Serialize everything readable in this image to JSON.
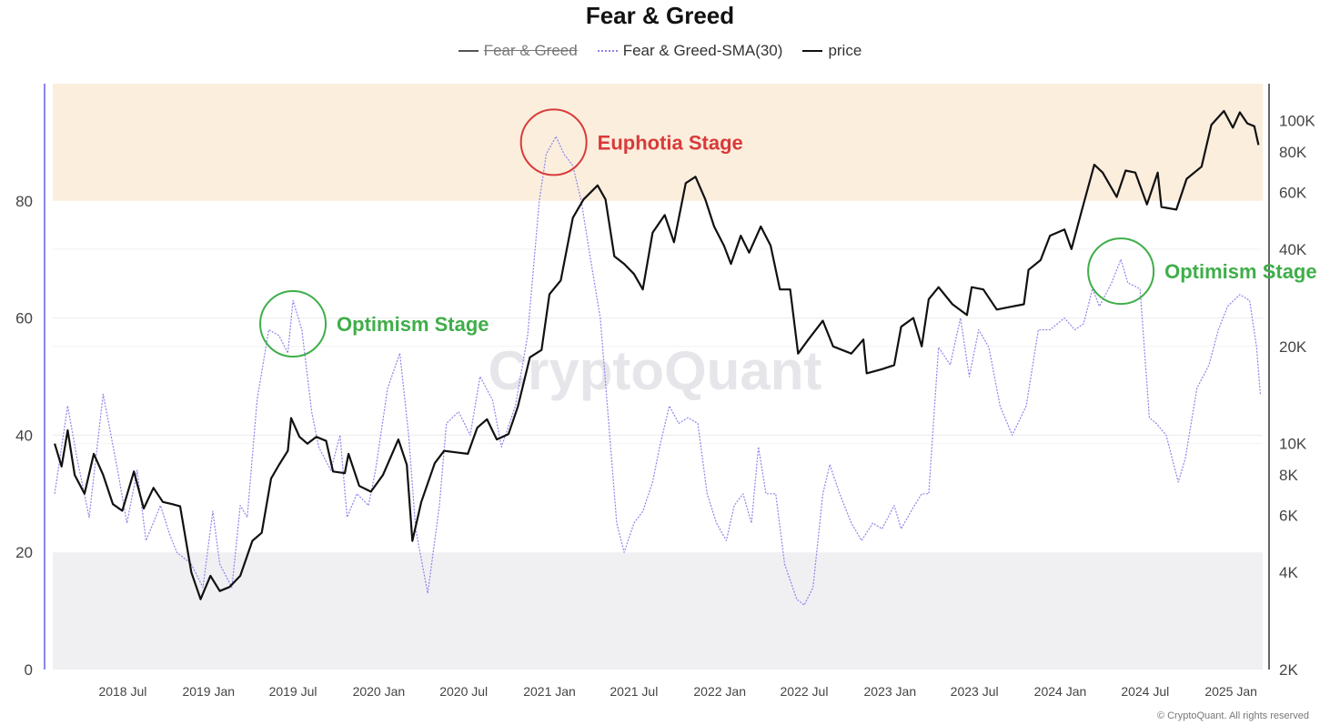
{
  "chart_data": {
    "type": "line",
    "title": "Fear & Greed",
    "legend": [
      {
        "name": "Fear & Greed",
        "style": "hidden",
        "color": "#555555"
      },
      {
        "name": "Fear & Greed-SMA(30)",
        "style": "dotted",
        "color": "#8c86ea"
      },
      {
        "name": "price",
        "style": "solid",
        "color": "#111111"
      }
    ],
    "legend_position": "top-center",
    "x_ticks": [
      "2018 Jul",
      "2019 Jan",
      "2019 Jul",
      "2020 Jan",
      "2020 Jul",
      "2021 Jan",
      "2021 Jul",
      "2022 Jan",
      "2022 Jul",
      "2023 Jan",
      "2023 Jul",
      "2024 Jan",
      "2024 Jul",
      "2025 Jan"
    ],
    "x_range": [
      "2018-02-01",
      "2025-03-10"
    ],
    "y_left": {
      "min": 0,
      "max": 100,
      "ticks": [
        0,
        20,
        40,
        60,
        80
      ]
    },
    "y_right": {
      "scale": "log",
      "min": 2000,
      "max": 130000,
      "ticks": [
        {
          "v": 2000,
          "l": "2K"
        },
        {
          "v": 4000,
          "l": "4K"
        },
        {
          "v": 6000,
          "l": "6K"
        },
        {
          "v": 8000,
          "l": "8K"
        },
        {
          "v": 10000,
          "l": "10K"
        },
        {
          "v": 20000,
          "l": "20K"
        },
        {
          "v": 40000,
          "l": "40K"
        },
        {
          "v": 60000,
          "l": "60K"
        },
        {
          "v": 80000,
          "l": "80K"
        },
        {
          "v": 100000,
          "l": "100K"
        }
      ]
    },
    "bands": [
      {
        "name": "greed-zone",
        "from": 80,
        "to": 100,
        "color": "#fbeedd"
      },
      {
        "name": "fear-zone",
        "from": 0,
        "to": 20,
        "color": "#f0f0f3"
      }
    ],
    "series": [
      {
        "name": "Fear & Greed-SMA(30)",
        "axis": "left",
        "color": "#8c86ea",
        "points": [
          [
            "2018-02-05",
            30
          ],
          [
            "2018-03-05",
            45
          ],
          [
            "2018-03-25",
            36
          ],
          [
            "2018-04-20",
            26
          ],
          [
            "2018-05-20",
            47
          ],
          [
            "2018-06-20",
            34
          ],
          [
            "2018-07-10",
            25
          ],
          [
            "2018-08-01",
            34
          ],
          [
            "2018-08-20",
            22
          ],
          [
            "2018-09-20",
            28
          ],
          [
            "2018-10-10",
            23
          ],
          [
            "2018-10-25",
            20
          ],
          [
            "2018-11-25",
            18
          ],
          [
            "2018-12-20",
            14
          ],
          [
            "2019-01-10",
            27
          ],
          [
            "2019-01-25",
            18
          ],
          [
            "2019-02-20",
            14
          ],
          [
            "2019-03-10",
            28
          ],
          [
            "2019-03-25",
            26
          ],
          [
            "2019-04-15",
            46
          ],
          [
            "2019-05-10",
            58
          ],
          [
            "2019-06-01",
            57
          ],
          [
            "2019-06-20",
            54
          ],
          [
            "2019-07-01",
            63
          ],
          [
            "2019-07-20",
            58
          ],
          [
            "2019-08-10",
            44
          ],
          [
            "2019-08-25",
            38
          ],
          [
            "2019-09-20",
            34
          ],
          [
            "2019-10-10",
            40
          ],
          [
            "2019-10-25",
            26
          ],
          [
            "2019-11-15",
            30
          ],
          [
            "2019-12-10",
            28
          ],
          [
            "2019-12-25",
            34
          ],
          [
            "2020-01-20",
            48
          ],
          [
            "2020-02-15",
            54
          ],
          [
            "2020-03-05",
            40
          ],
          [
            "2020-03-20",
            24
          ],
          [
            "2020-04-15",
            13
          ],
          [
            "2020-05-10",
            28
          ],
          [
            "2020-05-25",
            42
          ],
          [
            "2020-06-20",
            44
          ],
          [
            "2020-07-15",
            40
          ],
          [
            "2020-08-05",
            50
          ],
          [
            "2020-09-01",
            46
          ],
          [
            "2020-09-20",
            38
          ],
          [
            "2020-10-20",
            45
          ],
          [
            "2020-11-15",
            57
          ],
          [
            "2020-12-10",
            80
          ],
          [
            "2020-12-25",
            88
          ],
          [
            "2021-01-15",
            91
          ],
          [
            "2021-02-01",
            88
          ],
          [
            "2021-02-20",
            86
          ],
          [
            "2021-03-10",
            80
          ],
          [
            "2021-03-30",
            70
          ],
          [
            "2021-04-20",
            60
          ],
          [
            "2021-05-10",
            40
          ],
          [
            "2021-05-25",
            25
          ],
          [
            "2021-06-10",
            20
          ],
          [
            "2021-07-01",
            25
          ],
          [
            "2021-07-20",
            27
          ],
          [
            "2021-08-10",
            32
          ],
          [
            "2021-08-25",
            38
          ],
          [
            "2021-09-15",
            45
          ],
          [
            "2021-10-05",
            42
          ],
          [
            "2021-10-25",
            43
          ],
          [
            "2021-11-15",
            42
          ],
          [
            "2021-12-05",
            30
          ],
          [
            "2021-12-25",
            25
          ],
          [
            "2022-01-15",
            22
          ],
          [
            "2022-02-01",
            28
          ],
          [
            "2022-02-20",
            30
          ],
          [
            "2022-03-10",
            25
          ],
          [
            "2022-03-25",
            38
          ],
          [
            "2022-04-10",
            30
          ],
          [
            "2022-05-01",
            30
          ],
          [
            "2022-05-20",
            18
          ],
          [
            "2022-06-15",
            12
          ],
          [
            "2022-07-01",
            11
          ],
          [
            "2022-07-20",
            14
          ],
          [
            "2022-08-10",
            30
          ],
          [
            "2022-08-25",
            35
          ],
          [
            "2022-09-15",
            30
          ],
          [
            "2022-10-10",
            25
          ],
          [
            "2022-11-01",
            22
          ],
          [
            "2022-11-25",
            25
          ],
          [
            "2022-12-15",
            24
          ],
          [
            "2023-01-10",
            28
          ],
          [
            "2023-01-25",
            24
          ],
          [
            "2023-02-15",
            27
          ],
          [
            "2023-03-10",
            30
          ],
          [
            "2023-03-25",
            30
          ],
          [
            "2023-04-15",
            55
          ],
          [
            "2023-05-10",
            52
          ],
          [
            "2023-06-01",
            60
          ],
          [
            "2023-06-20",
            50
          ],
          [
            "2023-07-10",
            58
          ],
          [
            "2023-08-01",
            55
          ],
          [
            "2023-08-25",
            45
          ],
          [
            "2023-09-20",
            40
          ],
          [
            "2023-10-20",
            45
          ],
          [
            "2023-11-15",
            58
          ],
          [
            "2023-12-10",
            58
          ],
          [
            "2024-01-10",
            60
          ],
          [
            "2024-02-01",
            58
          ],
          [
            "2024-02-20",
            59
          ],
          [
            "2024-03-10",
            65
          ],
          [
            "2024-03-25",
            62
          ],
          [
            "2024-04-20",
            66
          ],
          [
            "2024-05-10",
            70
          ],
          [
            "2024-05-25",
            66
          ],
          [
            "2024-06-20",
            65
          ],
          [
            "2024-07-10",
            43
          ],
          [
            "2024-07-25",
            42
          ],
          [
            "2024-08-15",
            40
          ],
          [
            "2024-09-10",
            32
          ],
          [
            "2024-09-25",
            36
          ],
          [
            "2024-10-20",
            48
          ],
          [
            "2024-11-15",
            52
          ],
          [
            "2024-12-05",
            58
          ],
          [
            "2024-12-25",
            62
          ],
          [
            "2025-01-20",
            64
          ],
          [
            "2025-02-10",
            63
          ],
          [
            "2025-02-25",
            55
          ],
          [
            "2025-03-05",
            47
          ]
        ]
      },
      {
        "name": "price",
        "axis": "right",
        "color": "#111111",
        "points": [
          [
            "2018-02-05",
            10000
          ],
          [
            "2018-02-20",
            8500
          ],
          [
            "2018-03-05",
            11000
          ],
          [
            "2018-03-20",
            8000
          ],
          [
            "2018-04-10",
            7000
          ],
          [
            "2018-04-30",
            9300
          ],
          [
            "2018-05-20",
            8000
          ],
          [
            "2018-06-10",
            6500
          ],
          [
            "2018-06-30",
            6200
          ],
          [
            "2018-07-25",
            8200
          ],
          [
            "2018-08-15",
            6300
          ],
          [
            "2018-09-05",
            7300
          ],
          [
            "2018-09-25",
            6600
          ],
          [
            "2018-10-15",
            6500
          ],
          [
            "2018-11-01",
            6400
          ],
          [
            "2018-11-25",
            4000
          ],
          [
            "2018-12-15",
            3300
          ],
          [
            "2019-01-05",
            3900
          ],
          [
            "2019-01-25",
            3500
          ],
          [
            "2019-02-15",
            3600
          ],
          [
            "2019-03-10",
            3900
          ],
          [
            "2019-04-05",
            5000
          ],
          [
            "2019-04-25",
            5300
          ],
          [
            "2019-05-15",
            7800
          ],
          [
            "2019-06-01",
            8600
          ],
          [
            "2019-06-20",
            9500
          ],
          [
            "2019-06-27",
            12000
          ],
          [
            "2019-07-15",
            10500
          ],
          [
            "2019-08-01",
            10000
          ],
          [
            "2019-08-20",
            10500
          ],
          [
            "2019-09-10",
            10200
          ],
          [
            "2019-09-25",
            8200
          ],
          [
            "2019-10-20",
            8100
          ],
          [
            "2019-10-28",
            9300
          ],
          [
            "2019-11-20",
            7400
          ],
          [
            "2019-12-15",
            7100
          ],
          [
            "2020-01-10",
            8000
          ],
          [
            "2020-02-12",
            10300
          ],
          [
            "2020-03-01",
            8600
          ],
          [
            "2020-03-13",
            5000
          ],
          [
            "2020-04-01",
            6600
          ],
          [
            "2020-04-30",
            8700
          ],
          [
            "2020-05-20",
            9500
          ],
          [
            "2020-06-15",
            9400
          ],
          [
            "2020-07-10",
            9300
          ],
          [
            "2020-07-30",
            11200
          ],
          [
            "2020-08-20",
            11900
          ],
          [
            "2020-09-10",
            10300
          ],
          [
            "2020-10-05",
            10700
          ],
          [
            "2020-10-25",
            13000
          ],
          [
            "2020-11-20",
            18500
          ],
          [
            "2020-12-15",
            19500
          ],
          [
            "2021-01-01",
            29000
          ],
          [
            "2021-01-25",
            32000
          ],
          [
            "2021-02-20",
            50000
          ],
          [
            "2021-03-15",
            57000
          ],
          [
            "2021-04-14",
            63000
          ],
          [
            "2021-05-01",
            57000
          ],
          [
            "2021-05-20",
            38000
          ],
          [
            "2021-06-10",
            36000
          ],
          [
            "2021-07-01",
            33500
          ],
          [
            "2021-07-20",
            30000
          ],
          [
            "2021-08-10",
            45000
          ],
          [
            "2021-09-05",
            51000
          ],
          [
            "2021-09-25",
            42000
          ],
          [
            "2021-10-20",
            64000
          ],
          [
            "2021-11-10",
            67000
          ],
          [
            "2021-12-01",
            57000
          ],
          [
            "2021-12-20",
            47000
          ],
          [
            "2022-01-10",
            41000
          ],
          [
            "2022-01-25",
            36000
          ],
          [
            "2022-02-15",
            44000
          ],
          [
            "2022-03-05",
            39000
          ],
          [
            "2022-03-30",
            47000
          ],
          [
            "2022-04-20",
            41000
          ],
          [
            "2022-05-10",
            30000
          ],
          [
            "2022-06-01",
            30000
          ],
          [
            "2022-06-18",
            19000
          ],
          [
            "2022-07-10",
            21000
          ],
          [
            "2022-08-10",
            24000
          ],
          [
            "2022-09-01",
            20000
          ],
          [
            "2022-10-10",
            19000
          ],
          [
            "2022-11-05",
            21000
          ],
          [
            "2022-11-12",
            16500
          ],
          [
            "2022-12-15",
            17000
          ],
          [
            "2023-01-10",
            17500
          ],
          [
            "2023-01-25",
            23000
          ],
          [
            "2023-02-20",
            24500
          ],
          [
            "2023-03-10",
            20000
          ],
          [
            "2023-03-25",
            28000
          ],
          [
            "2023-04-15",
            30500
          ],
          [
            "2023-05-15",
            27000
          ],
          [
            "2023-06-15",
            25000
          ],
          [
            "2023-06-25",
            30500
          ],
          [
            "2023-07-20",
            30000
          ],
          [
            "2023-08-18",
            26000
          ],
          [
            "2023-09-15",
            26500
          ],
          [
            "2023-10-15",
            27000
          ],
          [
            "2023-10-25",
            34500
          ],
          [
            "2023-11-20",
            37000
          ],
          [
            "2023-12-10",
            44000
          ],
          [
            "2024-01-10",
            46000
          ],
          [
            "2024-01-25",
            40000
          ],
          [
            "2024-02-15",
            52000
          ],
          [
            "2024-03-14",
            73000
          ],
          [
            "2024-04-01",
            69000
          ],
          [
            "2024-05-01",
            58000
          ],
          [
            "2024-05-20",
            70000
          ],
          [
            "2024-06-10",
            69000
          ],
          [
            "2024-07-05",
            55000
          ],
          [
            "2024-07-28",
            69000
          ],
          [
            "2024-08-05",
            54000
          ],
          [
            "2024-09-06",
            53000
          ],
          [
            "2024-09-28",
            66000
          ],
          [
            "2024-10-30",
            72000
          ],
          [
            "2024-11-20",
            97000
          ],
          [
            "2024-12-17",
            107000
          ],
          [
            "2025-01-05",
            95000
          ],
          [
            "2025-01-20",
            106000
          ],
          [
            "2025-02-05",
            98000
          ],
          [
            "2025-02-20",
            96000
          ],
          [
            "2025-03-01",
            84000
          ]
        ]
      }
    ],
    "annotations": [
      {
        "text": "Euphotia Stage",
        "date": "2021-01-10",
        "value": 90,
        "color": "#d93a3a"
      },
      {
        "text": "Optimism Stage",
        "date": "2019-07-01",
        "value": 59,
        "color": "#3fae49"
      },
      {
        "text": "Optimism Stage",
        "date": "2024-05-10",
        "value": 68,
        "color": "#3fae49"
      }
    ]
  },
  "watermark": "CryptoQuant",
  "copyright": "© CryptoQuant. All rights reserved"
}
